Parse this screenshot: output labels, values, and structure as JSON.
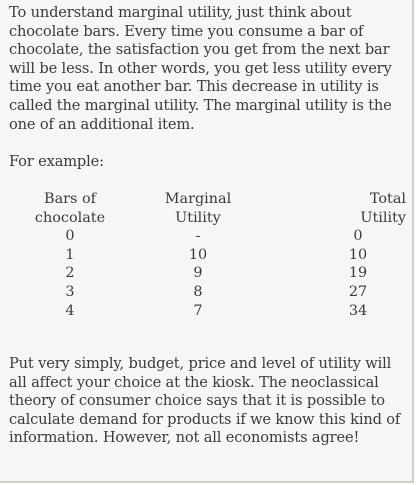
{
  "intro": "To understand marginal utility, just think about chocolate bars. Every time you consume a bar of chocolate, the satisfaction you get from the next bar will be less. In other words, you get less utility every time you eat another bar. This decrease in utility is called the marginal utility. The marginal utility is the one of an additional item.",
  "example_label": "For example:",
  "table": {
    "headers": {
      "bars_line1": "Bars of",
      "bars_line2": "chocolate",
      "marginal_line1": "Marginal",
      "marginal_line2": "Utility",
      "total_line1": "Total",
      "total_line2": "Utility"
    },
    "rows": [
      {
        "bars": "0",
        "marginal": "-",
        "total": "0"
      },
      {
        "bars": "1",
        "marginal": "10",
        "total": "10"
      },
      {
        "bars": "2",
        "marginal": "9",
        "total": "19"
      },
      {
        "bars": "3",
        "marginal": "8",
        "total": "27"
      },
      {
        "bars": "4",
        "marginal": "7",
        "total": "34"
      }
    ]
  },
  "outro": "Put very simply, budget, price and level of utility will all affect your choice at the kiosk. The neoclassical theory of consumer choice says that it is possible to calculate demand for products if we know this kind of information. However, not all economists agree!"
}
